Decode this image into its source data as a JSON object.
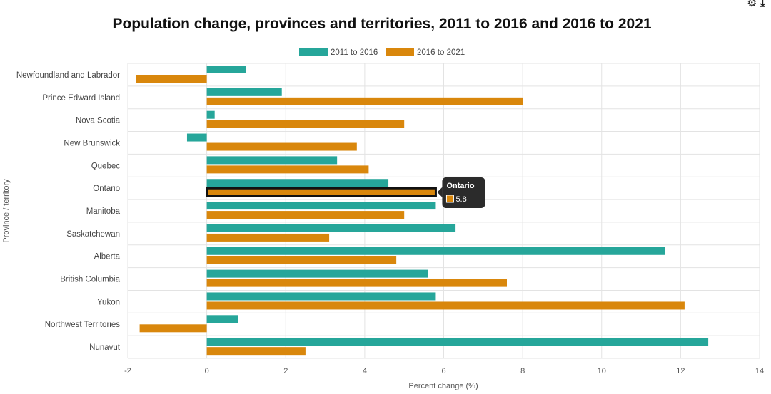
{
  "chart_data": {
    "type": "bar",
    "orientation": "horizontal",
    "title": "Population change, provinces and territories, 2011 to 2016 and 2016 to 2021",
    "xlabel": "Percent change (%)",
    "ylabel": "Province / territory",
    "xlim": [
      -2,
      14
    ],
    "xticks": [
      "-2",
      "0",
      "2",
      "4",
      "6",
      "8",
      "10",
      "12",
      "14"
    ],
    "grid": true,
    "legend_position": "top-center",
    "categories": [
      "Newfoundland and Labrador",
      "Prince Edward Island",
      "Nova Scotia",
      "New Brunswick",
      "Quebec",
      "Ontario",
      "Manitoba",
      "Saskatchewan",
      "Alberta",
      "British Columbia",
      "Yukon",
      "Northwest Territories",
      "Nunavut"
    ],
    "series": [
      {
        "name": "2011 to 2016",
        "color": "#26a69a",
        "values": [
          1.0,
          1.9,
          0.2,
          -0.5,
          3.3,
          4.6,
          5.8,
          6.3,
          11.6,
          5.6,
          5.8,
          0.8,
          12.7
        ]
      },
      {
        "name": "2016 to 2021",
        "color": "#d9870c",
        "values": [
          -1.8,
          8.0,
          5.0,
          3.8,
          4.1,
          5.8,
          5.0,
          3.1,
          4.8,
          7.6,
          12.1,
          -1.7,
          2.5
        ]
      }
    ],
    "tooltip": {
      "title": "Ontario",
      "value": "5.8",
      "series_index": 1,
      "category_index": 5
    }
  },
  "corner_icons": "⚙ ⤓"
}
